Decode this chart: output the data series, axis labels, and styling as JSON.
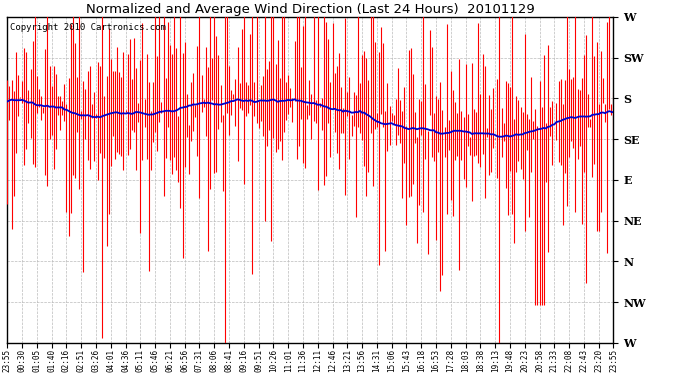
{
  "title": "Normalized and Average Wind Direction (Last 24 Hours)  20101129",
  "copyright": "Copyright 2010 Cartronics.com",
  "background_color": "#ffffff",
  "plot_bg_color": "#ffffff",
  "grid_color": "#bbbbbb",
  "red_color": "#ff0000",
  "blue_color": "#0000cc",
  "ytick_labels": [
    "W",
    "SW",
    "S",
    "SE",
    "E",
    "NE",
    "N",
    "NW",
    "W"
  ],
  "ytick_values": [
    360,
    315,
    270,
    225,
    180,
    135,
    90,
    45,
    0
  ],
  "ylim": [
    0,
    360
  ],
  "x_labels": [
    "23:55",
    "00:30",
    "01:05",
    "01:40",
    "02:16",
    "02:51",
    "03:26",
    "04:01",
    "04:36",
    "05:11",
    "05:46",
    "06:21",
    "06:56",
    "07:31",
    "08:06",
    "08:41",
    "09:16",
    "09:51",
    "10:26",
    "11:01",
    "11:36",
    "12:11",
    "12:46",
    "13:21",
    "13:56",
    "14:31",
    "15:06",
    "15:43",
    "16:18",
    "16:53",
    "17:28",
    "18:03",
    "18:38",
    "19:13",
    "19:48",
    "20:23",
    "20:58",
    "21:33",
    "22:08",
    "22:43",
    "23:20",
    "23:55"
  ],
  "figsize": [
    6.9,
    3.75
  ],
  "dpi": 100
}
